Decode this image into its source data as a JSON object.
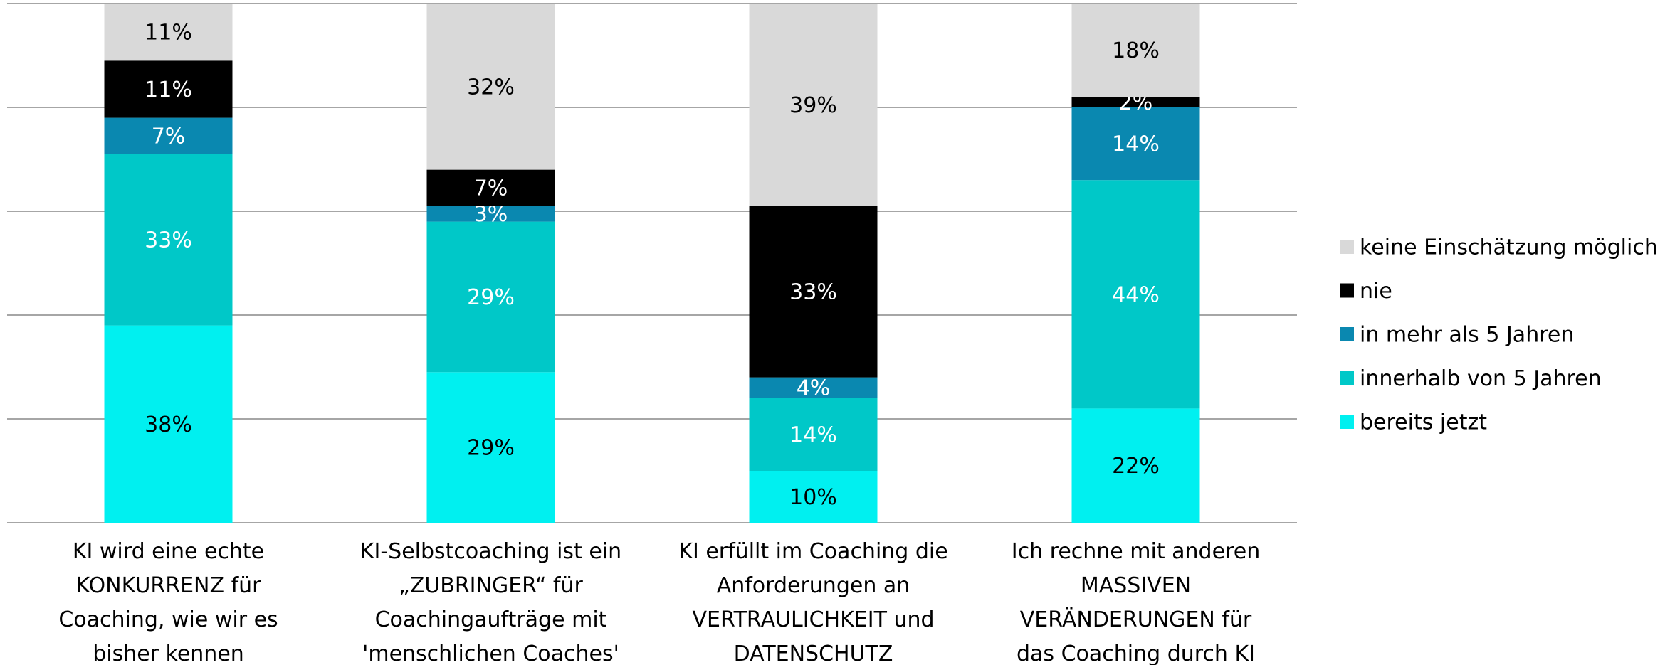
{
  "chart_data": {
    "type": "stacked_bar",
    "categories": [
      "KI wird eine echte KONKURRENZ für Coaching, wie wir es bisher kennen",
      "KI-Selbstcoaching ist ein „ZUBRINGER“ für Coachingaufträge mit 'menschlichen Coaches'",
      "KI erfüllt im Coaching die Anforderungen an VERTRAULICHKEIT und DATENSCHUTZ",
      "Ich rechne mit anderen MASSIVEN VERÄNDERUNGEN für das Coaching durch KI"
    ],
    "series": [
      {
        "name": "bereits jetzt",
        "color": "#00f0f0",
        "label_color": "#000000",
        "values": [
          38,
          29,
          10,
          22
        ],
        "value_labels": [
          "38%",
          "29%",
          "10%",
          "22%"
        ]
      },
      {
        "name": "innerhalb von 5 Jahren",
        "color": "#00c8c8",
        "label_color": "#ffffff",
        "values": [
          33,
          29,
          14,
          44
        ],
        "value_labels": [
          "33%",
          "29%",
          "14%",
          "44%"
        ]
      },
      {
        "name": "in mehr als 5 Jahren",
        "color": "#0a88b0",
        "label_color": "#ffffff",
        "values": [
          7,
          3,
          4,
          14
        ],
        "value_labels": [
          "7%",
          "3%",
          "4%",
          "14%"
        ]
      },
      {
        "name": "nie",
        "color": "#000000",
        "label_color": "#ffffff",
        "values": [
          11,
          7,
          33,
          2
        ],
        "value_labels": [
          "11%",
          "7%",
          "33%",
          "2%"
        ]
      },
      {
        "name": "keine Einschätzung möglich",
        "color": "#d9d9d9",
        "label_color": "#000000",
        "values": [
          11,
          32,
          39,
          18
        ],
        "value_labels": [
          "11%",
          "32%",
          "39%",
          "18%"
        ]
      }
    ],
    "ylim": [
      0,
      100
    ],
    "yticks": [
      0,
      20,
      40,
      60,
      80,
      100
    ],
    "grid": true,
    "legend": "right"
  }
}
